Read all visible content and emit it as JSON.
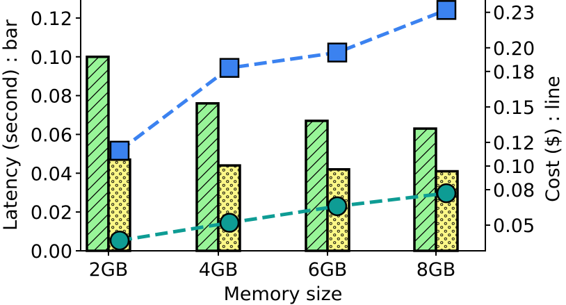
{
  "chart_data": {
    "type": "bar",
    "categories": [
      "2GB",
      "4GB",
      "6GB",
      "8GB"
    ],
    "xlabel": "Memory size",
    "ylabel": "Latency (second) : bar",
    "y2label": "Cost ($) : line",
    "ylim": [
      0,
      0.13
    ],
    "y2lim": [
      0.0283,
      0.2416
    ],
    "yticks": [
      "0.00",
      "0.02",
      "0.04",
      "0.06",
      "0.08",
      "0.10",
      "0.12"
    ],
    "y2ticks": [
      "0.05",
      "0.08",
      "0.10",
      "0.12",
      "0.15",
      "0.18",
      "0.20",
      "0.23"
    ],
    "bar_series": [
      {
        "values": [
          0.1,
          0.076,
          0.067,
          0.063
        ],
        "color": "#98f598",
        "hatch": "diagonal"
      },
      {
        "values": [
          0.047,
          0.044,
          0.042,
          0.041
        ],
        "color": "#fbf787",
        "hatch": "dots"
      }
    ],
    "line_series": [
      {
        "values": [
          0.113,
          0.183,
          0.196,
          0.232
        ],
        "color": "#3b82f0",
        "marker": "square"
      },
      {
        "values": [
          0.037,
          0.052,
          0.066,
          0.077
        ],
        "color": "#0e9c94",
        "marker": "circle"
      }
    ],
    "grid": false,
    "legend": "none"
  }
}
